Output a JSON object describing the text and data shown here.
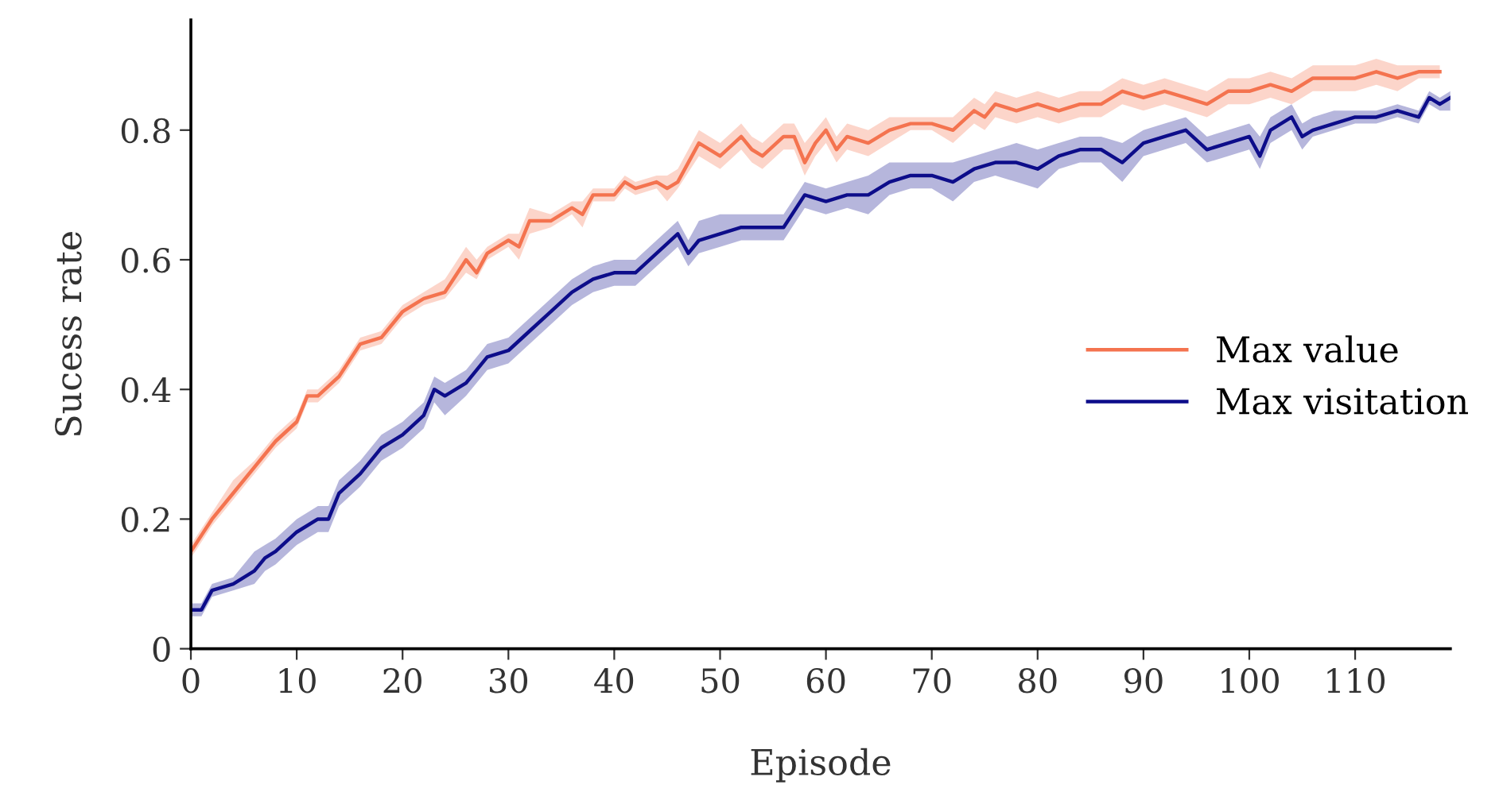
{
  "chart_data": {
    "type": "line",
    "xlabel": "Episode",
    "ylabel": "Sucess rate",
    "xlim": [
      0,
      119
    ],
    "xticks": [
      0,
      10,
      20,
      30,
      40,
      50,
      60,
      70,
      80,
      90,
      100,
      110
    ],
    "ylim": [
      0,
      0.97
    ],
    "yticks": [
      0,
      0.2,
      0.4,
      0.6,
      0.8
    ],
    "grid": false,
    "legend": "right",
    "line_style": "solid",
    "marker": "none",
    "series": [
      {
        "name": "Max value",
        "color": "#f4734f",
        "x": [
          0,
          2,
          4,
          6,
          8,
          10,
          11,
          12,
          14,
          16,
          18,
          20,
          22,
          24,
          26,
          27,
          28,
          30,
          31,
          32,
          34,
          36,
          37,
          38,
          40,
          41,
          42,
          44,
          45,
          46,
          48,
          50,
          52,
          53,
          54,
          56,
          57,
          58,
          59,
          60,
          61,
          62,
          64,
          66,
          68,
          70,
          72,
          74,
          75,
          76,
          78,
          80,
          82,
          84,
          86,
          88,
          90,
          92,
          94,
          96,
          98,
          100,
          102,
          104,
          106,
          108,
          110,
          112,
          114,
          116,
          118
        ],
        "values": [
          0.15,
          0.2,
          0.24,
          0.28,
          0.32,
          0.35,
          0.39,
          0.39,
          0.42,
          0.47,
          0.48,
          0.52,
          0.54,
          0.55,
          0.6,
          0.58,
          0.61,
          0.63,
          0.62,
          0.66,
          0.66,
          0.68,
          0.67,
          0.7,
          0.7,
          0.72,
          0.71,
          0.72,
          0.71,
          0.72,
          0.78,
          0.76,
          0.79,
          0.77,
          0.76,
          0.79,
          0.79,
          0.75,
          0.78,
          0.8,
          0.77,
          0.79,
          0.78,
          0.8,
          0.81,
          0.81,
          0.8,
          0.83,
          0.82,
          0.84,
          0.83,
          0.84,
          0.83,
          0.84,
          0.84,
          0.86,
          0.85,
          0.86,
          0.85,
          0.84,
          0.86,
          0.86,
          0.87,
          0.86,
          0.88,
          0.88,
          0.88,
          0.89,
          0.88,
          0.89,
          0.89
        ],
        "lower": [
          0.14,
          0.19,
          0.23,
          0.27,
          0.31,
          0.34,
          0.38,
          0.38,
          0.41,
          0.46,
          0.47,
          0.51,
          0.53,
          0.54,
          0.58,
          0.57,
          0.6,
          0.62,
          0.6,
          0.64,
          0.65,
          0.67,
          0.65,
          0.69,
          0.69,
          0.71,
          0.7,
          0.71,
          0.69,
          0.71,
          0.76,
          0.74,
          0.77,
          0.75,
          0.74,
          0.77,
          0.77,
          0.73,
          0.76,
          0.78,
          0.75,
          0.77,
          0.76,
          0.78,
          0.8,
          0.8,
          0.78,
          0.81,
          0.8,
          0.82,
          0.81,
          0.82,
          0.81,
          0.82,
          0.82,
          0.84,
          0.83,
          0.84,
          0.83,
          0.82,
          0.84,
          0.84,
          0.85,
          0.84,
          0.86,
          0.86,
          0.86,
          0.87,
          0.86,
          0.88,
          0.88
        ],
        "upper": [
          0.16,
          0.21,
          0.26,
          0.29,
          0.33,
          0.36,
          0.4,
          0.4,
          0.43,
          0.48,
          0.49,
          0.53,
          0.55,
          0.57,
          0.62,
          0.6,
          0.62,
          0.64,
          0.64,
          0.68,
          0.67,
          0.69,
          0.69,
          0.71,
          0.71,
          0.73,
          0.72,
          0.73,
          0.73,
          0.74,
          0.8,
          0.78,
          0.81,
          0.79,
          0.78,
          0.81,
          0.81,
          0.78,
          0.8,
          0.82,
          0.79,
          0.81,
          0.8,
          0.82,
          0.82,
          0.82,
          0.82,
          0.85,
          0.84,
          0.86,
          0.85,
          0.86,
          0.85,
          0.86,
          0.86,
          0.88,
          0.87,
          0.88,
          0.87,
          0.86,
          0.88,
          0.88,
          0.89,
          0.88,
          0.9,
          0.9,
          0.9,
          0.91,
          0.9,
          0.9,
          0.9
        ]
      },
      {
        "name": "Max visitation",
        "color": "#0d0d8a",
        "x": [
          0,
          1,
          2,
          4,
          6,
          7,
          8,
          10,
          12,
          13,
          14,
          16,
          18,
          20,
          22,
          23,
          24,
          26,
          28,
          30,
          32,
          34,
          36,
          38,
          40,
          42,
          44,
          46,
          47,
          48,
          50,
          52,
          54,
          56,
          58,
          60,
          62,
          64,
          66,
          68,
          70,
          72,
          74,
          76,
          78,
          80,
          82,
          84,
          86,
          88,
          90,
          92,
          94,
          96,
          98,
          100,
          101,
          102,
          104,
          105,
          106,
          108,
          110,
          112,
          114,
          116,
          117,
          118,
          119
        ],
        "values": [
          0.06,
          0.06,
          0.09,
          0.1,
          0.12,
          0.14,
          0.15,
          0.18,
          0.2,
          0.2,
          0.24,
          0.27,
          0.31,
          0.33,
          0.36,
          0.4,
          0.39,
          0.41,
          0.45,
          0.46,
          0.49,
          0.52,
          0.55,
          0.57,
          0.58,
          0.58,
          0.61,
          0.64,
          0.61,
          0.63,
          0.64,
          0.65,
          0.65,
          0.65,
          0.7,
          0.69,
          0.7,
          0.7,
          0.72,
          0.73,
          0.73,
          0.72,
          0.74,
          0.75,
          0.75,
          0.74,
          0.76,
          0.77,
          0.77,
          0.75,
          0.78,
          0.79,
          0.8,
          0.77,
          0.78,
          0.79,
          0.76,
          0.8,
          0.82,
          0.79,
          0.8,
          0.81,
          0.82,
          0.82,
          0.83,
          0.82,
          0.85,
          0.84,
          0.85
        ],
        "lower": [
          0.05,
          0.05,
          0.08,
          0.09,
          0.1,
          0.12,
          0.13,
          0.16,
          0.18,
          0.18,
          0.22,
          0.25,
          0.29,
          0.31,
          0.34,
          0.38,
          0.36,
          0.39,
          0.43,
          0.44,
          0.47,
          0.5,
          0.53,
          0.55,
          0.56,
          0.56,
          0.59,
          0.62,
          0.59,
          0.61,
          0.62,
          0.63,
          0.63,
          0.63,
          0.68,
          0.67,
          0.68,
          0.67,
          0.7,
          0.71,
          0.71,
          0.69,
          0.72,
          0.73,
          0.72,
          0.71,
          0.74,
          0.75,
          0.75,
          0.72,
          0.76,
          0.77,
          0.78,
          0.75,
          0.76,
          0.77,
          0.74,
          0.78,
          0.8,
          0.77,
          0.79,
          0.8,
          0.81,
          0.81,
          0.82,
          0.81,
          0.84,
          0.83,
          0.83
        ],
        "upper": [
          0.07,
          0.07,
          0.1,
          0.11,
          0.15,
          0.16,
          0.17,
          0.2,
          0.22,
          0.22,
          0.26,
          0.29,
          0.33,
          0.35,
          0.38,
          0.42,
          0.41,
          0.43,
          0.47,
          0.48,
          0.51,
          0.54,
          0.57,
          0.59,
          0.6,
          0.6,
          0.63,
          0.66,
          0.63,
          0.66,
          0.67,
          0.67,
          0.67,
          0.67,
          0.72,
          0.71,
          0.72,
          0.73,
          0.75,
          0.75,
          0.75,
          0.75,
          0.76,
          0.77,
          0.78,
          0.77,
          0.78,
          0.79,
          0.79,
          0.78,
          0.8,
          0.81,
          0.82,
          0.79,
          0.8,
          0.81,
          0.79,
          0.82,
          0.84,
          0.81,
          0.82,
          0.83,
          0.83,
          0.83,
          0.84,
          0.83,
          0.86,
          0.85,
          0.86
        ]
      }
    ]
  }
}
